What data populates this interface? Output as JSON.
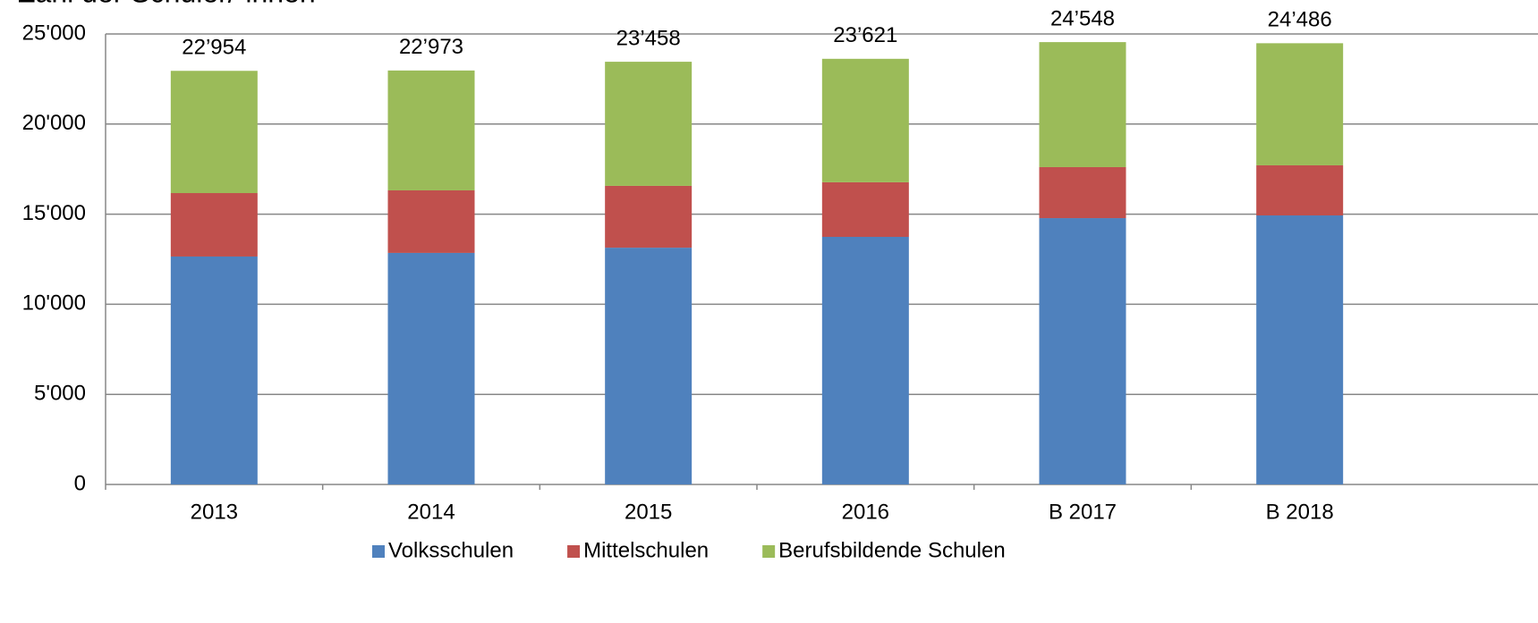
{
  "chart_data": {
    "type": "stacked_bar",
    "title": "Zahl der Schüler/-innen",
    "categories": [
      "2013",
      "2014",
      "2015",
      "2016",
      "B 2017",
      "B 2018"
    ],
    "series": [
      {
        "name": "Volksschulen",
        "color": "#4f81bd",
        "values": [
          12650,
          12850,
          13140,
          13740,
          14780,
          14930
        ]
      },
      {
        "name": "Mittelschulen",
        "color": "#c0504d",
        "values": [
          3520,
          3470,
          3430,
          3030,
          2830,
          2780
        ]
      },
      {
        "name": "Berufsbildende Schulen",
        "color": "#9bbb59",
        "values": [
          6784,
          6653,
          6888,
          6851,
          6938,
          6776
        ]
      }
    ],
    "totals": [
      22954,
      22973,
      23458,
      23621,
      24548,
      24486
    ],
    "total_labels": [
      "22’954",
      "22’973",
      "23’458",
      "23’621",
      "24’548",
      "24’486"
    ],
    "ylim": [
      0,
      25000
    ],
    "yticks": [
      0,
      {
        "value": 5000,
        "label": "5'000"
      },
      {
        "value": 10000,
        "label": "10'000"
      },
      {
        "value": 15000,
        "label": "15'000"
      },
      {
        "value": 20000,
        "label": "20'000"
      },
      {
        "value": 25000,
        "label": "25'000"
      }
    ],
    "grid": true,
    "legend": "bottom"
  }
}
